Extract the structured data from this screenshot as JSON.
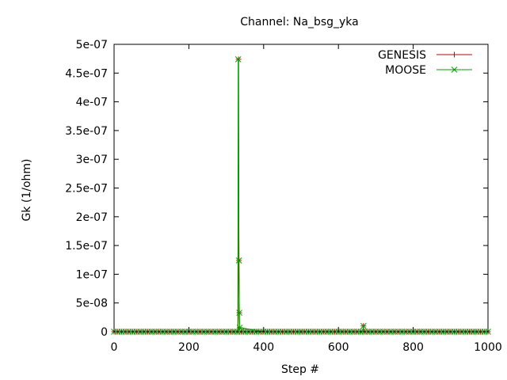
{
  "chart_data": {
    "type": "line",
    "title": "Channel: Na_bsg_yka",
    "xlabel": "Step #",
    "ylabel": "Gk (1/ohm)",
    "xlim": [
      0,
      1000
    ],
    "ylim": [
      0,
      5e-07
    ],
    "x_ticks": [
      0,
      200,
      400,
      600,
      800,
      1000
    ],
    "x_tick_labels": [
      "0",
      "200",
      "400",
      "600",
      "800",
      "1000"
    ],
    "y_ticks": [
      0,
      5e-08,
      1e-07,
      1.5e-07,
      2e-07,
      2.5e-07,
      3e-07,
      3.5e-07,
      4e-07,
      4.5e-07,
      5e-07
    ],
    "y_tick_labels": [
      "0",
      "5e-08",
      "1e-07",
      "1.5e-07",
      "2e-07",
      "2.5e-07",
      "3e-07",
      "3.5e-07",
      "4e-07",
      "4.5e-07",
      "5e-07"
    ],
    "grid": false,
    "legend_position": "top-right",
    "series": [
      {
        "name": "GENESIS",
        "color": "#cc0000",
        "marker": "plus",
        "x": [
          0,
          320,
          332,
          333,
          334,
          335,
          336,
          400,
          666,
          667,
          668,
          1000
        ],
        "y": [
          0,
          0,
          0,
          4.74e-07,
          1.24e-07,
          3.3e-08,
          7e-09,
          0,
          0,
          1e-08,
          0,
          0
        ],
        "markers_x": [
          333,
          334,
          335,
          336,
          667
        ],
        "markers_y": [
          4.74e-07,
          1.24e-07,
          3.3e-08,
          7e-09,
          1e-08
        ]
      },
      {
        "name": "MOOSE",
        "color": "#00a000",
        "marker": "cross",
        "x": [
          0,
          320,
          331,
          332,
          333,
          334,
          335,
          336,
          400,
          666,
          667,
          668,
          1000
        ],
        "y": [
          0,
          0,
          0,
          4.74e-07,
          3e-07,
          1.24e-07,
          3.3e-08,
          7e-09,
          0,
          0,
          1e-08,
          0,
          0
        ],
        "markers_x": [
          332,
          334,
          335,
          336,
          667
        ],
        "markers_y": [
          4.74e-07,
          1.24e-07,
          3.3e-08,
          7e-09,
          1e-08
        ]
      }
    ]
  }
}
